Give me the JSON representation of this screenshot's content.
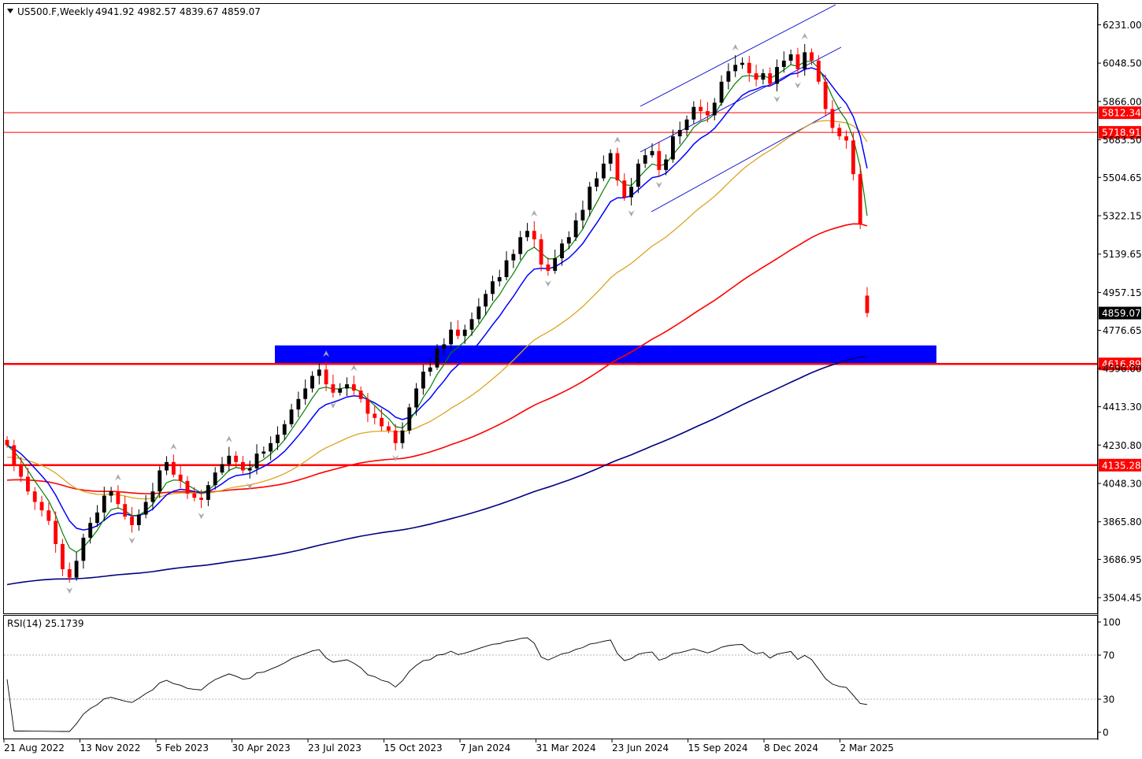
{
  "header": {
    "symbol": "US500.F,Weekly",
    "ohlc": "4941.92 4982.57 4839.67 4859.07"
  },
  "rsi_header": "RSI(14) 25.1739",
  "colors": {
    "bull": "#000000",
    "bear": "#ff0000",
    "ema_fast": "#008000",
    "ema_blue": "#0000ff",
    "ema_gold": "#daa520",
    "ema_red": "#ff0000",
    "ema_navy": "#000080",
    "level_line": "#ff0000",
    "zone": "#0000ff",
    "channel": "#0000cd"
  },
  "chart_data": {
    "type": "candlestick",
    "timeframe": "Weekly",
    "price_axis": {
      "range": [
        3430,
        6330
      ],
      "ticks": [
        "6231.00",
        "6048.50",
        "5866.00",
        "5683.50",
        "5504.65",
        "5322.15",
        "5139.65",
        "4957.15",
        "4776.65",
        "4596.00",
        "4413.30",
        "4230.80",
        "4048.30",
        "3865.80",
        "3686.95",
        "3504.45"
      ]
    },
    "time_axis": {
      "labels": [
        "21 Aug 2022",
        "13 Nov 2022",
        "5 Feb 2023",
        "30 Apr 2023",
        "23 Jul 2023",
        "15 Oct 2023",
        "7 Jan 2024",
        "31 Mar 2024",
        "23 Jun 2024",
        "15 Sep 2024",
        "8 Dec 2024",
        "2 Mar 2025"
      ]
    },
    "price_series": [
      4230,
      4140,
      4080,
      4010,
      3960,
      3920,
      3870,
      3760,
      3640,
      3600,
      3680,
      3790,
      3860,
      3910,
      3990,
      4010,
      3950,
      3890,
      3850,
      3900,
      3960,
      4010,
      4110,
      4150,
      4090,
      4060,
      4000,
      3980,
      3970,
      4040,
      4100,
      4140,
      4180,
      4150,
      4110,
      4120,
      4190,
      4200,
      4240,
      4280,
      4330,
      4400,
      4450,
      4500,
      4560,
      4590,
      4520,
      4480,
      4500,
      4520,
      4490,
      4450,
      4380,
      4360,
      4320,
      4300,
      4240,
      4300,
      4410,
      4500,
      4580,
      4600,
      4690,
      4710,
      4780,
      4750,
      4780,
      4830,
      4890,
      4950,
      5010,
      5030,
      5110,
      5140,
      5220,
      5250,
      5210,
      5090,
      5060,
      5120,
      5190,
      5220,
      5300,
      5350,
      5460,
      5500,
      5570,
      5620,
      5490,
      5410,
      5460,
      5570,
      5610,
      5630,
      5540,
      5590,
      5700,
      5730,
      5780,
      5840,
      5820,
      5800,
      5860,
      5960,
      6010,
      6040,
      6050,
      6000,
      5970,
      6000,
      5950,
      6030,
      6060,
      6090,
      6020,
      6100,
      6060,
      5960,
      5830,
      5740,
      5700,
      5680,
      5520,
      5280,
      4859.07
    ],
    "price_line_label": "4859.07",
    "indicators": {
      "ema_fast_green": {
        "period": 5
      },
      "ema_blue": {
        "period": 10
      },
      "ema_gold": {
        "period": 34
      },
      "ema_red": {
        "period": 89
      },
      "ema_navy": {
        "period": 200
      }
    },
    "horizontal_levels": [
      {
        "label": "5812.34",
        "value": 5812.34,
        "width": "thin"
      },
      {
        "label": "5718.91",
        "value": 5718.91,
        "width": "thin"
      },
      {
        "label": "4616.89",
        "value": 4616.89,
        "width": "thick"
      },
      {
        "label": "4135.28",
        "value": 4135.28,
        "width": "thick"
      }
    ],
    "supply_demand_zone": {
      "low": 4620,
      "high": 4705
    },
    "rsi": {
      "label": "RSI(14)",
      "period": 14,
      "last": 25.1739,
      "range": [
        0,
        100
      ],
      "ticks": [
        "100",
        "70",
        "30",
        "0"
      ],
      "levels": [
        70,
        30
      ]
    }
  }
}
